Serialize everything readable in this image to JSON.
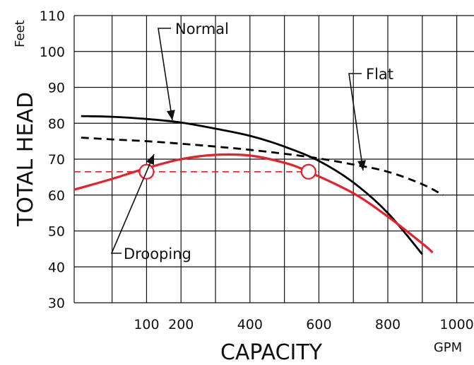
{
  "chart_data": {
    "type": "line",
    "xlabel": "CAPACITY",
    "ylabel": "TOTAL HEAD",
    "x_unit": "GPM",
    "y_unit": "Feet",
    "xlim": [
      -110,
      1050
    ],
    "ylim": [
      30,
      110
    ],
    "x_ticks": [
      100,
      200,
      400,
      600,
      800,
      1000
    ],
    "y_ticks": [
      30,
      40,
      50,
      60,
      70,
      80,
      90,
      100,
      110
    ],
    "x_gridlines": [
      0,
      100,
      200,
      300,
      400,
      500,
      600,
      700,
      800,
      900,
      1000
    ],
    "grid": true,
    "reference_line": {
      "y": 66.5,
      "color": "#e8202a",
      "style": "dashed"
    },
    "operating_points": [
      {
        "x": 100,
        "y": 66.5
      },
      {
        "x": 570,
        "y": 66.5
      }
    ],
    "series": [
      {
        "name": "Normal",
        "color": "#000000",
        "style": "solid",
        "x": [
          -90,
          0,
          100,
          200,
          300,
          400,
          500,
          600,
          700,
          800,
          900
        ],
        "y": [
          82,
          81.8,
          81.2,
          80.2,
          78.5,
          76.5,
          73.5,
          69.5,
          63.5,
          55,
          43.5
        ]
      },
      {
        "name": "Flat",
        "color": "#000000",
        "style": "dashed",
        "x": [
          -90,
          0,
          100,
          200,
          300,
          400,
          500,
          600,
          700,
          800,
          900,
          960
        ],
        "y": [
          76,
          75.5,
          75,
          74.3,
          73.5,
          72.6,
          71.5,
          70.2,
          68.5,
          66.5,
          63,
          60
        ]
      },
      {
        "name": "Drooping",
        "color": "#e8202a",
        "style": "solid",
        "x": [
          -110,
          0,
          100,
          200,
          300,
          400,
          500,
          570,
          700,
          800,
          900,
          930
        ],
        "y": [
          61.5,
          64.5,
          67.5,
          70,
          71.2,
          71,
          69,
          66.5,
          60.5,
          54,
          46.5,
          44
        ]
      }
    ],
    "annotations": [
      {
        "text": "Normal",
        "target_series": "Normal"
      },
      {
        "text": "Flat",
        "target_series": "Flat"
      },
      {
        "text": "Drooping",
        "target_series": "Drooping"
      }
    ]
  }
}
